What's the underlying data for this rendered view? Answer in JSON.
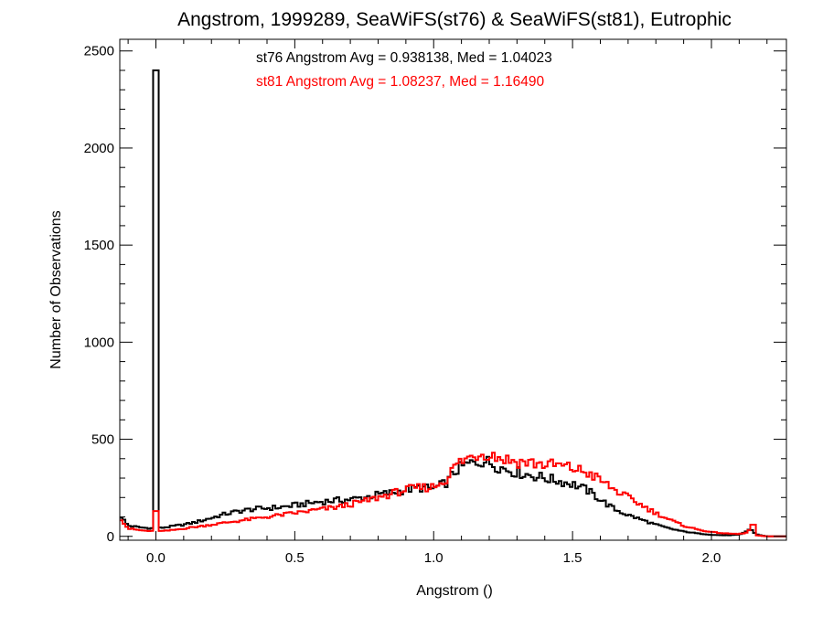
{
  "colors": {
    "st76": "#000000",
    "st81": "#ff0000",
    "background": "#ffffff"
  },
  "chart_data": {
    "type": "line",
    "style": "histogram-step",
    "title": "Angstrom, 1999289, SeaWiFS(st76) & SeaWiFS(st81), Eutrophic",
    "xlabel": "Angstrom ()",
    "ylabel": "Number of Observations",
    "xlim": [
      -0.13,
      2.27
    ],
    "ylim": [
      -20,
      2560
    ],
    "xticks": [
      0.0,
      0.5,
      1.0,
      1.5,
      2.0
    ],
    "xtick_labels": [
      "0.0",
      "0.5",
      "1.0",
      "1.5",
      "2.0"
    ],
    "yticks": [
      0,
      500,
      1000,
      1500,
      2000,
      2500
    ],
    "ytick_labels": [
      "0",
      "500",
      "1000",
      "1500",
      "2000",
      "2500"
    ],
    "grid": false,
    "annotations": [
      {
        "id": "st76",
        "text": "st76 Angstrom Avg = 0.938138, Med = 1.04023",
        "color": "#000000"
      },
      {
        "id": "st81",
        "text": "st81 Angstrom Avg = 1.08237, Med = 1.16490",
        "color": "#ff0000"
      }
    ],
    "bin_width": 0.01,
    "series": [
      {
        "color": "#000000",
        "spikes": [
          {
            "x": 0.0,
            "y": 2400
          }
        ],
        "points": [
          [
            -0.13,
            110
          ],
          [
            -0.1,
            55
          ],
          [
            -0.05,
            45
          ],
          [
            0.0,
            40
          ],
          [
            0.05,
            50
          ],
          [
            0.1,
            60
          ],
          [
            0.15,
            75
          ],
          [
            0.2,
            95
          ],
          [
            0.25,
            115
          ],
          [
            0.3,
            130
          ],
          [
            0.35,
            140
          ],
          [
            0.4,
            145
          ],
          [
            0.45,
            150
          ],
          [
            0.5,
            160
          ],
          [
            0.55,
            170
          ],
          [
            0.6,
            180
          ],
          [
            0.65,
            185
          ],
          [
            0.7,
            190
          ],
          [
            0.75,
            200
          ],
          [
            0.8,
            215
          ],
          [
            0.85,
            225
          ],
          [
            0.9,
            240
          ],
          [
            0.95,
            250
          ],
          [
            1.0,
            245
          ],
          [
            1.05,
            280
          ],
          [
            1.08,
            340
          ],
          [
            1.12,
            370
          ],
          [
            1.15,
            380
          ],
          [
            1.18,
            390
          ],
          [
            1.2,
            380
          ],
          [
            1.25,
            350
          ],
          [
            1.3,
            330
          ],
          [
            1.35,
            315
          ],
          [
            1.4,
            300
          ],
          [
            1.45,
            285
          ],
          [
            1.5,
            270
          ],
          [
            1.55,
            240
          ],
          [
            1.6,
            190
          ],
          [
            1.65,
            140
          ],
          [
            1.7,
            110
          ],
          [
            1.75,
            85
          ],
          [
            1.8,
            60
          ],
          [
            1.85,
            40
          ],
          [
            1.9,
            25
          ],
          [
            1.95,
            15
          ],
          [
            2.0,
            8
          ],
          [
            2.05,
            5
          ],
          [
            2.1,
            8
          ],
          [
            2.12,
            20
          ],
          [
            2.14,
            40
          ],
          [
            2.16,
            10
          ],
          [
            2.2,
            0
          ],
          [
            2.27,
            0
          ]
        ]
      },
      {
        "color": "#ff0000",
        "spikes": [
          {
            "x": 0.0,
            "y": 130
          },
          {
            "x": 2.15,
            "y": 60
          }
        ],
        "points": [
          [
            -0.13,
            100
          ],
          [
            -0.1,
            40
          ],
          [
            -0.05,
            30
          ],
          [
            0.0,
            25
          ],
          [
            0.05,
            30
          ],
          [
            0.1,
            40
          ],
          [
            0.15,
            50
          ],
          [
            0.2,
            60
          ],
          [
            0.25,
            70
          ],
          [
            0.3,
            80
          ],
          [
            0.35,
            90
          ],
          [
            0.4,
            100
          ],
          [
            0.45,
            110
          ],
          [
            0.5,
            120
          ],
          [
            0.55,
            130
          ],
          [
            0.6,
            140
          ],
          [
            0.65,
            150
          ],
          [
            0.7,
            165
          ],
          [
            0.75,
            180
          ],
          [
            0.8,
            200
          ],
          [
            0.85,
            220
          ],
          [
            0.9,
            240
          ],
          [
            0.95,
            250
          ],
          [
            1.0,
            255
          ],
          [
            1.05,
            300
          ],
          [
            1.08,
            370
          ],
          [
            1.12,
            400
          ],
          [
            1.15,
            420
          ],
          [
            1.18,
            430
          ],
          [
            1.2,
            425
          ],
          [
            1.25,
            400
          ],
          [
            1.3,
            385
          ],
          [
            1.35,
            380
          ],
          [
            1.4,
            370
          ],
          [
            1.45,
            365
          ],
          [
            1.5,
            350
          ],
          [
            1.55,
            330
          ],
          [
            1.6,
            290
          ],
          [
            1.65,
            240
          ],
          [
            1.7,
            200
          ],
          [
            1.75,
            160
          ],
          [
            1.8,
            120
          ],
          [
            1.85,
            85
          ],
          [
            1.9,
            55
          ],
          [
            1.95,
            35
          ],
          [
            2.0,
            22
          ],
          [
            2.05,
            15
          ],
          [
            2.1,
            12
          ],
          [
            2.13,
            20
          ],
          [
            2.15,
            60
          ],
          [
            2.16,
            5
          ],
          [
            2.2,
            0
          ],
          [
            2.27,
            0
          ]
        ]
      }
    ]
  }
}
